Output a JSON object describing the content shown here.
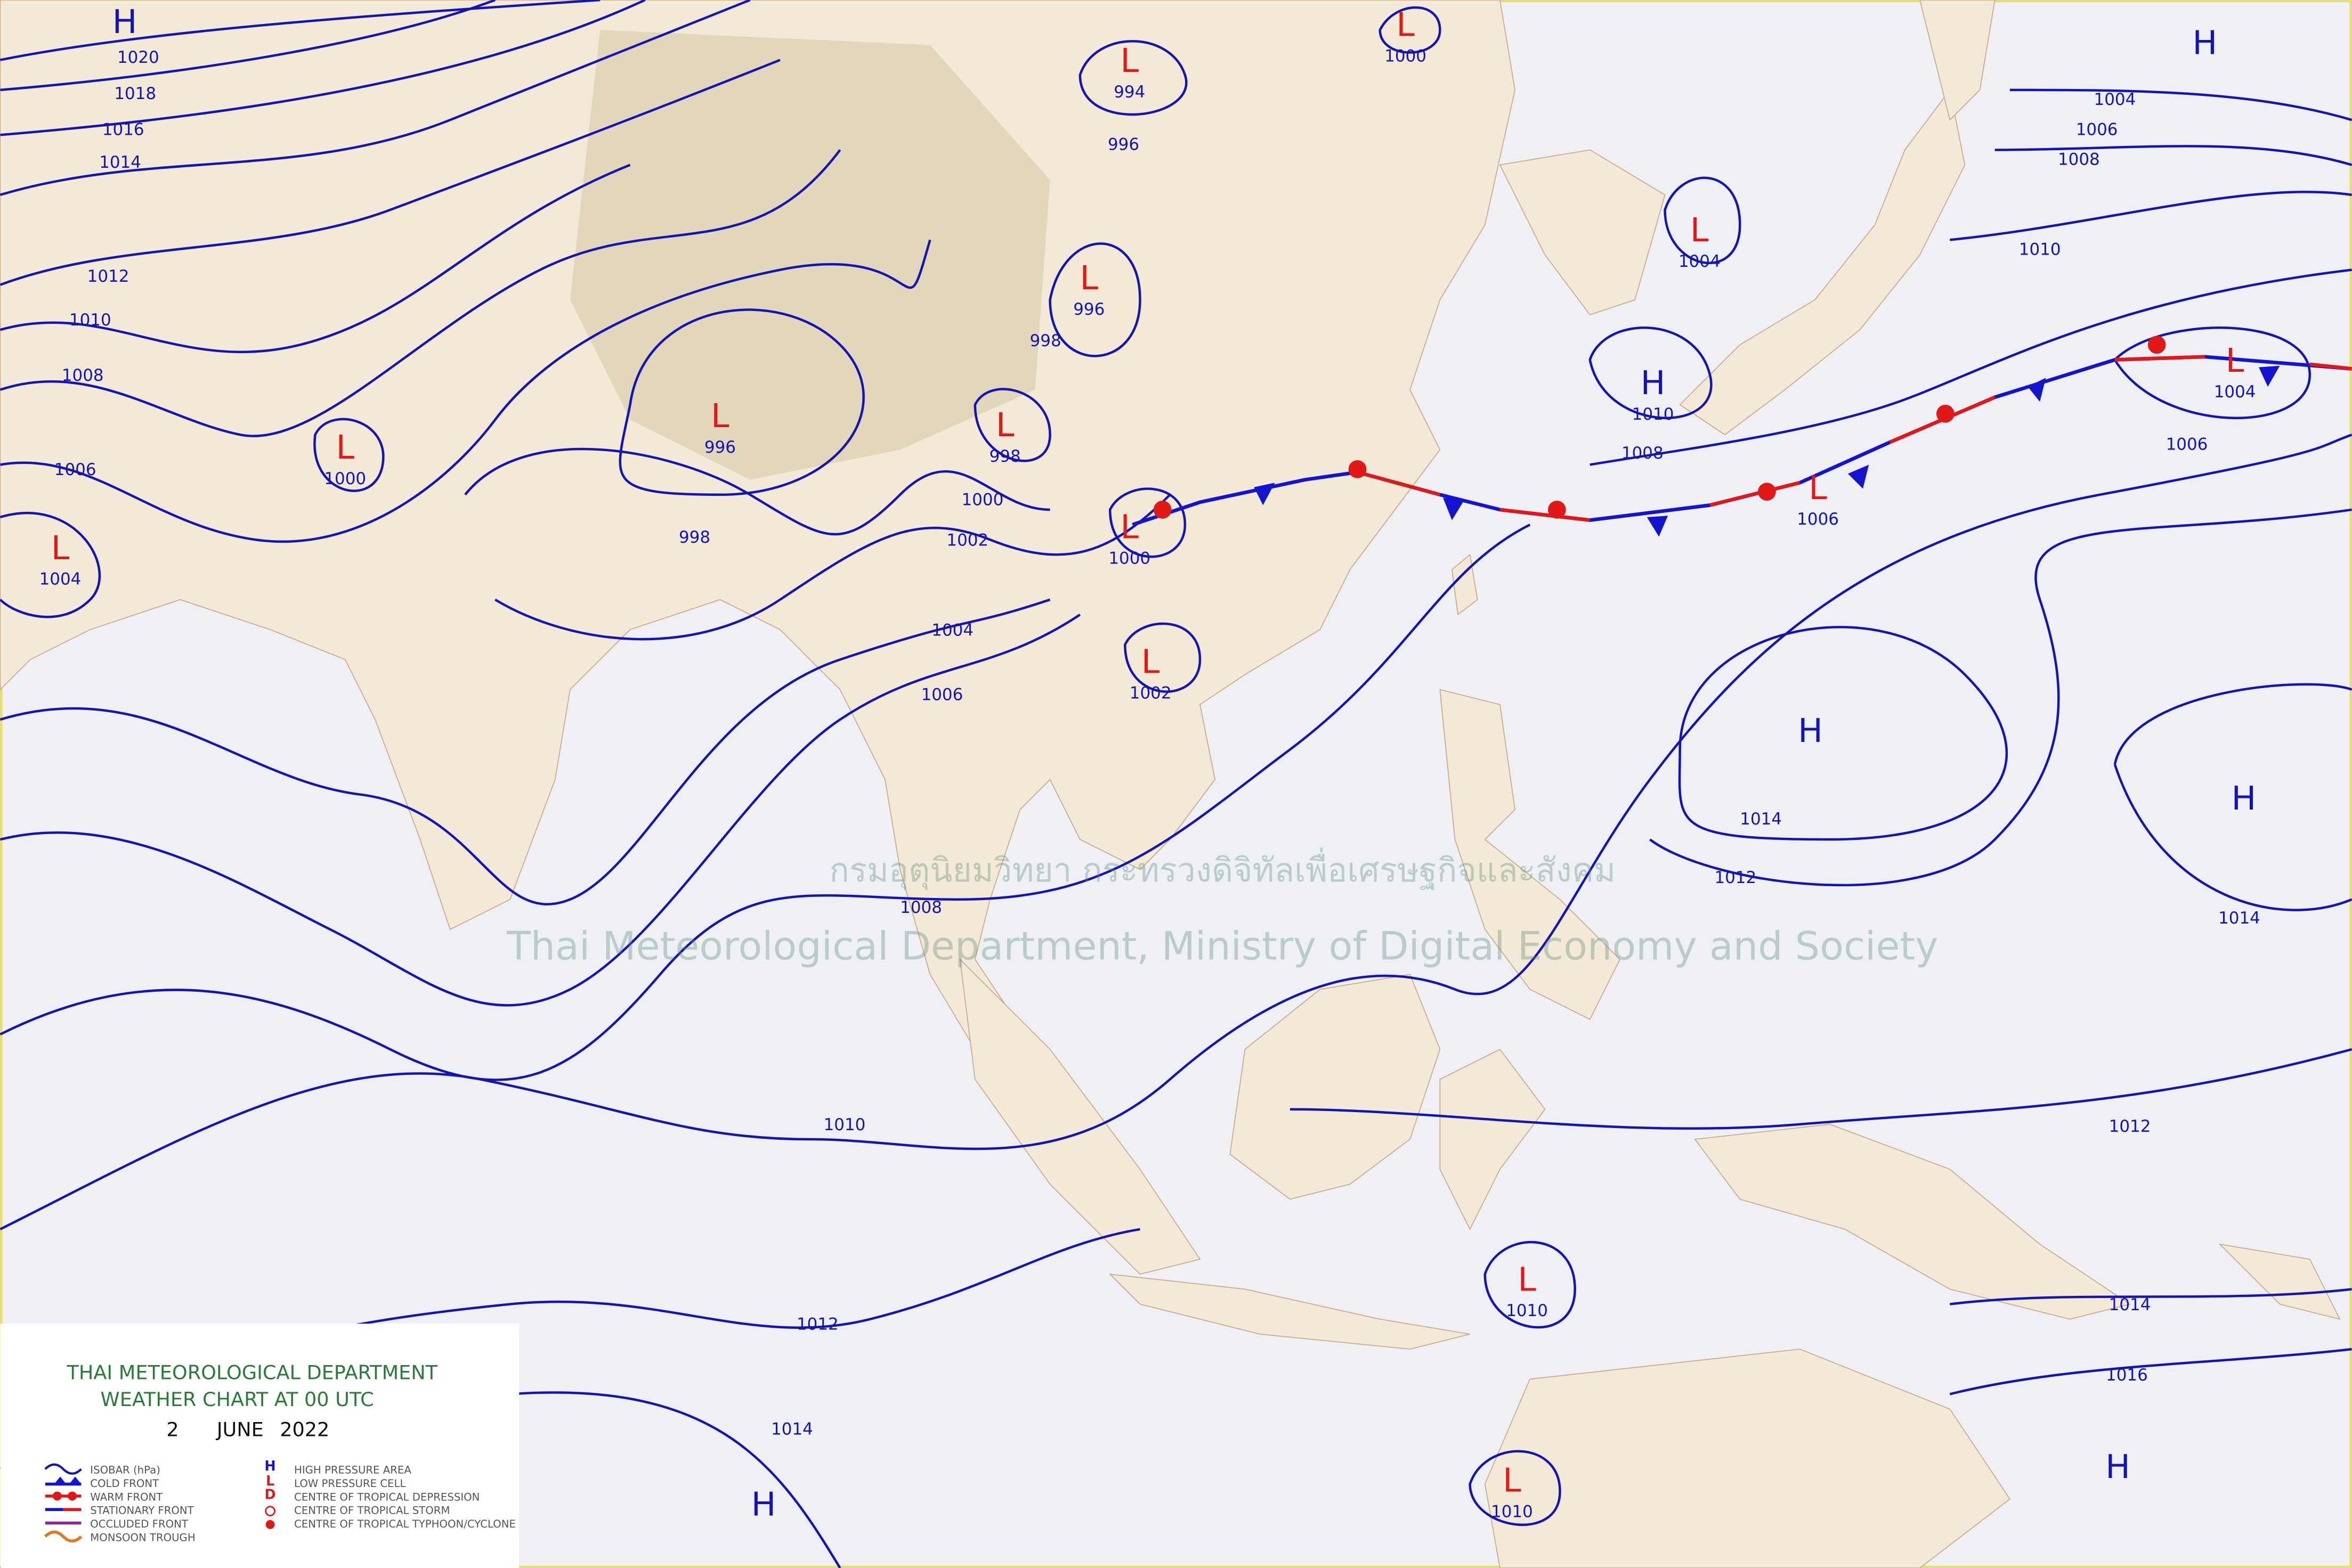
{
  "title": {
    "line1": "THAI METEOROLOGICAL DEPARTMENT",
    "line2": "WEATHER CHART AT  00  UTC",
    "day": "2",
    "month": "JUNE",
    "year": "2022"
  },
  "watermark": {
    "thai": "กรมอุตุนิยมวิทยา กระทรวงดิจิทัลเพื่อเศรษฐกิจและสังคม",
    "english": "Thai Meteorological Department, Ministry of Digital Economy and Society"
  },
  "legend_left": [
    "ISOBAR (hPa)",
    "COLD FRONT",
    "WARM FRONT",
    "STATIONARY FRONT",
    "OCCLUDED FRONT",
    "MONSOON TROUGH"
  ],
  "legend_right": [
    "HIGH PRESSURE AREA",
    "LOW PRESSURE CELL",
    "CENTRE OF TROPICAL DEPRESSION",
    "CENTRE OF TROPICAL STORM",
    "CENTRE OF TROPICAL TYPHOON/CYCLONE"
  ],
  "centers": [
    {
      "letter": "H"
    },
    {
      "letter": "L",
      "value": "994"
    },
    {
      "letter": "L",
      "value": "1000"
    },
    {
      "letter": "H"
    },
    {
      "letter": "L",
      "value": "1004"
    },
    {
      "letter": "L",
      "value": "996"
    },
    {
      "letter": "H",
      "value": "1010"
    },
    {
      "letter": "L",
      "value": "996"
    },
    {
      "letter": "L",
      "value": "998"
    },
    {
      "letter": "L",
      "value": "1000"
    },
    {
      "letter": "L",
      "value": "1004"
    },
    {
      "letter": "L",
      "value": "1000"
    },
    {
      "letter": "L",
      "value": "1004"
    },
    {
      "letter": "L",
      "value": "1006"
    },
    {
      "letter": "L",
      "value": "1002"
    },
    {
      "letter": "H"
    },
    {
      "letter": "H"
    },
    {
      "letter": "L",
      "value": "1010"
    },
    {
      "letter": "L",
      "value": "1010"
    },
    {
      "letter": "H"
    },
    {
      "letter": "H"
    }
  ],
  "isobar_labels": [
    "1020",
    "1018",
    "1016",
    "1014",
    "1012",
    "1010",
    "1008",
    "1006",
    "1004",
    "1006",
    "1008",
    "1010",
    "1006",
    "1008",
    "1000",
    "1002",
    "1004",
    "1006",
    "1008",
    "1010",
    "1012",
    "1014",
    "1014",
    "1012",
    "1014",
    "1012",
    "1014",
    "1016",
    "998",
    "996",
    "998"
  ]
}
